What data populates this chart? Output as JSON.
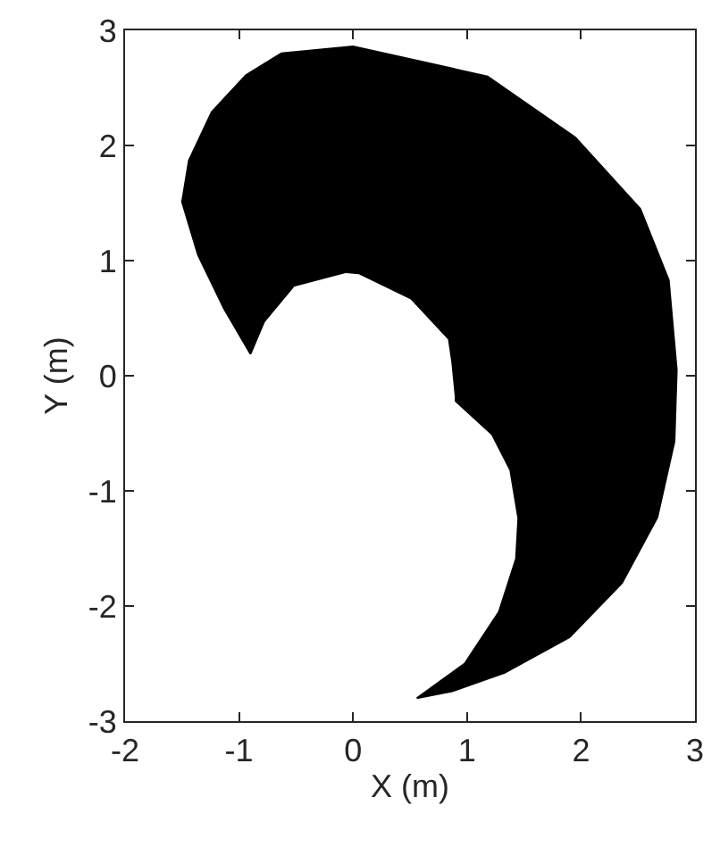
{
  "chart_data": {
    "type": "area",
    "xlabel": "X (m)",
    "ylabel": "Y (m)",
    "xlim": [
      -2,
      3
    ],
    "xticks": [
      -2,
      -1,
      0,
      1,
      2,
      3
    ],
    "ylim": [
      -3,
      3
    ],
    "yticks": [
      -3,
      -2,
      -1,
      0,
      1,
      2,
      3
    ],
    "series": [
      {
        "color": "#000000",
        "x": [
          -0.63,
          0,
          1.18,
          1.95,
          2.52,
          2.77,
          2.84,
          2.82,
          2.67,
          2.36,
          1.9,
          1.33,
          0.87,
          0.56,
          0.98,
          1.28,
          1.43,
          1.45,
          1.38,
          1.22,
          0.9,
          0.9,
          0.87,
          0.84,
          0.51,
          0.05,
          -0.06,
          -0.52,
          -0.78,
          -0.9,
          -1.13,
          -1.36,
          -1.5,
          -1.44,
          -1.24,
          -0.94,
          -0.63
        ],
        "values": [
          2.8,
          2.86,
          2.6,
          2.07,
          1.45,
          0.83,
          0.05,
          -0.57,
          -1.23,
          -1.8,
          -2.27,
          -2.58,
          -2.74,
          -2.8,
          -2.5,
          -2.05,
          -1.59,
          -1.24,
          -0.82,
          -0.51,
          -0.22,
          -0.18,
          0.12,
          0.32,
          0.67,
          0.89,
          0.9,
          0.78,
          0.47,
          0.19,
          0.58,
          1.05,
          1.51,
          1.87,
          2.29,
          2.61,
          2.8
        ]
      }
    ]
  }
}
